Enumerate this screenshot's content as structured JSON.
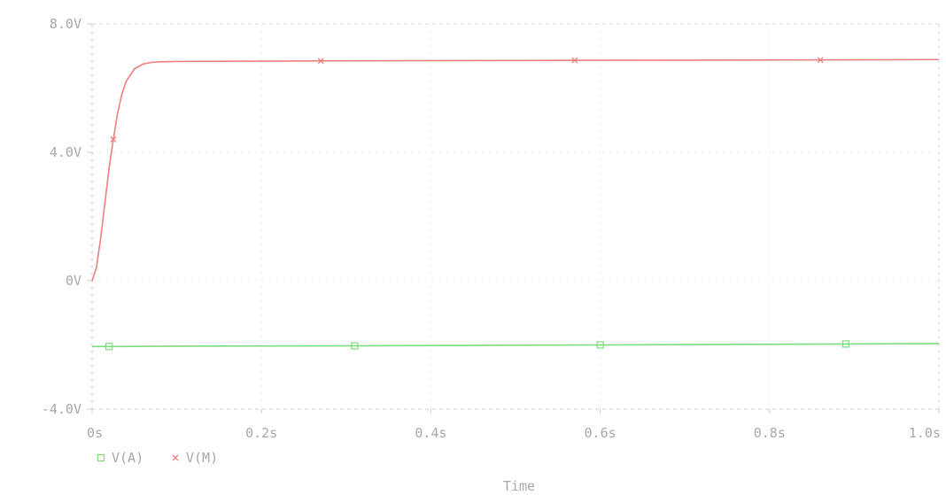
{
  "chart_data": {
    "type": "line",
    "title": "",
    "xlabel": "Time",
    "ylabel": "",
    "xlim": [
      0,
      1.0
    ],
    "ylim": [
      -4,
      8
    ],
    "x_ticks": [
      {
        "value": 0,
        "label": "0s"
      },
      {
        "value": 0.2,
        "label": "0.2s"
      },
      {
        "value": 0.4,
        "label": "0.4s"
      },
      {
        "value": 0.6,
        "label": "0.6s"
      },
      {
        "value": 0.8,
        "label": "0.8s"
      },
      {
        "value": 1.0,
        "label": "1.0s"
      }
    ],
    "y_ticks": [
      {
        "value": 8,
        "label": "8.0V"
      },
      {
        "value": 4,
        "label": "4.0V"
      },
      {
        "value": 0,
        "label": "0V"
      },
      {
        "value": -4,
        "label": "-4.0V"
      }
    ],
    "grid": true,
    "legend_position": "bottom-left",
    "series": [
      {
        "name": "V(A)",
        "color": "#7ddc7d",
        "marker": "square",
        "x": [
          0,
          0.02,
          0.1,
          0.3,
          0.5,
          0.6,
          0.8,
          0.9,
          1.0
        ],
        "y": [
          -2.05,
          -2.05,
          -2.04,
          -2.03,
          -2.01,
          -2.0,
          -1.98,
          -1.97,
          -1.96
        ],
        "marker_x": [
          0.02,
          0.31,
          0.6,
          0.89
        ]
      },
      {
        "name": "V(M)",
        "color": "#f07f7f",
        "marker": "x",
        "x": [
          0,
          0.005,
          0.01,
          0.015,
          0.02,
          0.025,
          0.03,
          0.035,
          0.04,
          0.05,
          0.06,
          0.07,
          0.08,
          0.1,
          0.2,
          0.3,
          0.5,
          0.7,
          0.9,
          1.0
        ],
        "y": [
          0,
          0.4,
          1.3,
          2.4,
          3.5,
          4.4,
          5.2,
          5.8,
          6.2,
          6.6,
          6.75,
          6.8,
          6.82,
          6.83,
          6.84,
          6.85,
          6.86,
          6.87,
          6.88,
          6.89
        ],
        "marker_x": [
          0.025,
          0.27,
          0.57,
          0.86
        ]
      }
    ]
  }
}
